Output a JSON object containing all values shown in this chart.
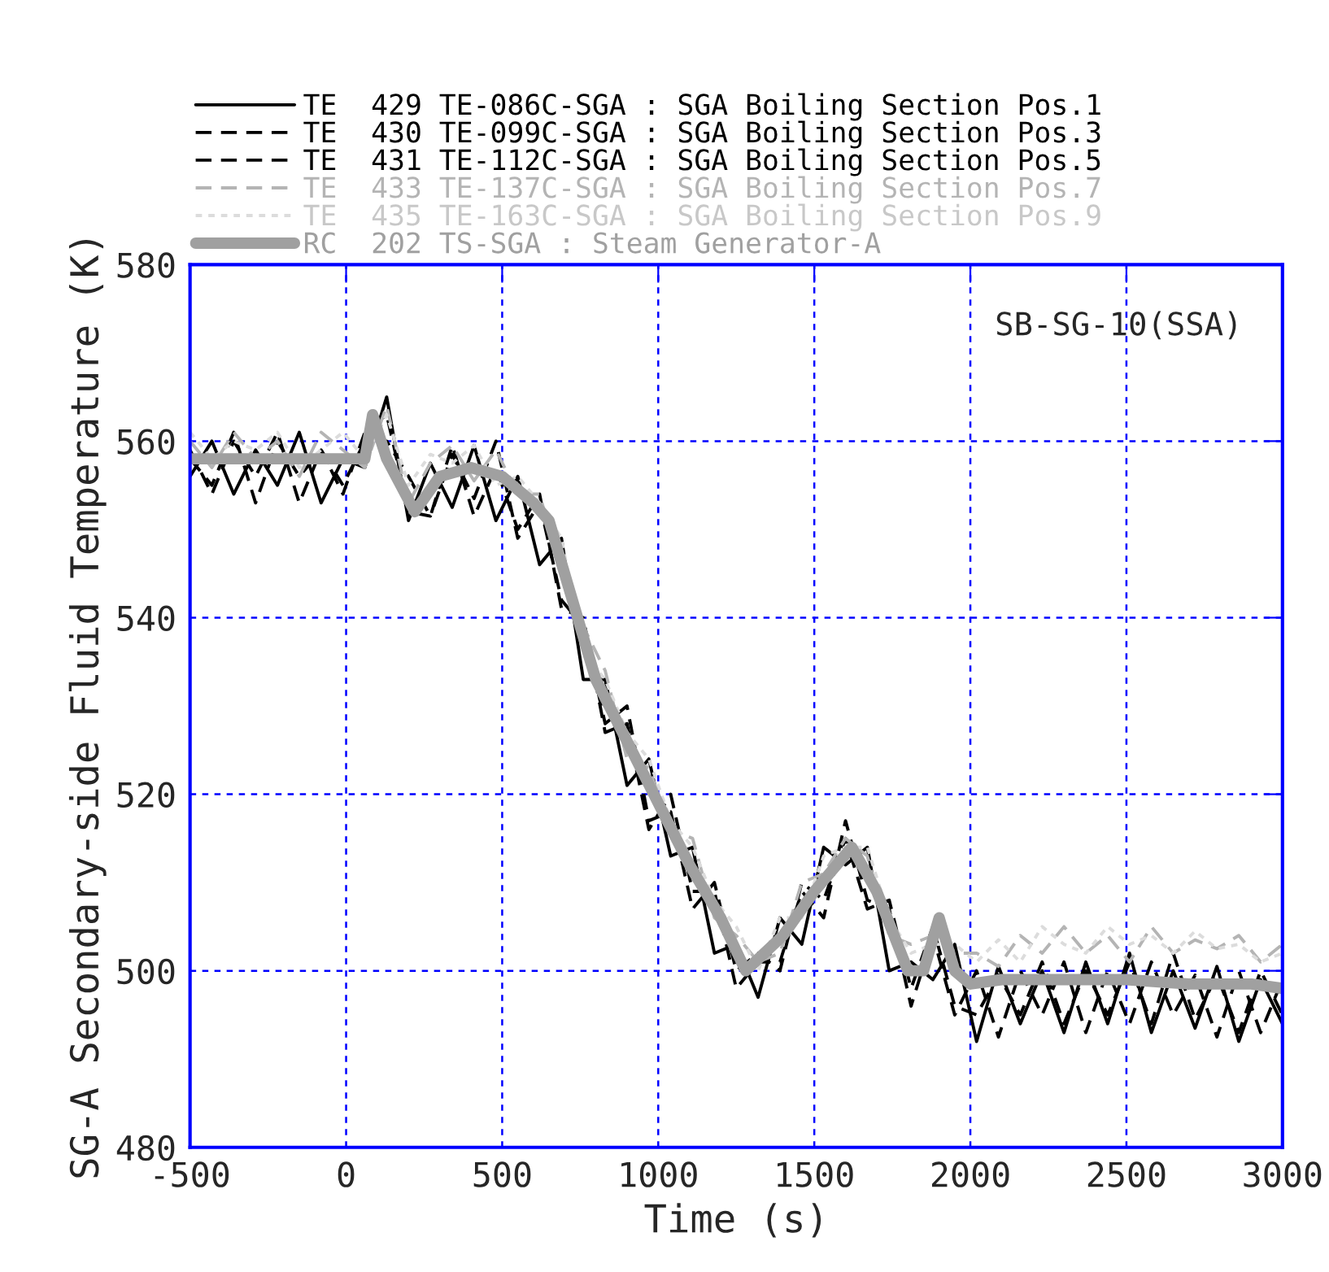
{
  "chart_data": {
    "type": "line",
    "xlabel": "Time (s)",
    "ylabel": "SG-A Secondary-side Fluid Temperature (K)",
    "annotations": [
      "SB-SG-10(SSA)"
    ],
    "xlim": [
      -500,
      3000
    ],
    "xticks": [
      -500,
      0,
      500,
      1000,
      1500,
      2000,
      2500,
      3000
    ],
    "ylim": [
      480,
      580
    ],
    "yticks": [
      480,
      500,
      520,
      540,
      560,
      580
    ],
    "grid": true,
    "legend": "top",
    "x": [
      -500,
      -430,
      -360,
      -290,
      -220,
      -150,
      -80,
      -10,
      60,
      130,
      200,
      270,
      340,
      410,
      480,
      550,
      620,
      690,
      760,
      830,
      900,
      970,
      1040,
      1110,
      1180,
      1250,
      1320,
      1390,
      1460,
      1530,
      1600,
      1670,
      1740,
      1810,
      1880,
      1950,
      2020,
      2090,
      2160,
      2230,
      2300,
      2370,
      2440,
      2510,
      2580,
      2650,
      2720,
      2790,
      2860,
      2930,
      3000
    ],
    "series": [
      {
        "name": "TE  429 TE-086C-SGA : SGA Boiling Section Pos.1",
        "color": "#000000",
        "line_style": "solid",
        "values": [
          556,
          560,
          554,
          559,
          555,
          561,
          553,
          558,
          557,
          565,
          551,
          557.5,
          552.5,
          559.5,
          551,
          556,
          546,
          549,
          533,
          533,
          521,
          524,
          513,
          514,
          502,
          503,
          497,
          506,
          503,
          514,
          512,
          514,
          500,
          501,
          499,
          503,
          492,
          500.5,
          494,
          500,
          493,
          501,
          494,
          502,
          493,
          500,
          493.5,
          500.5,
          492,
          499,
          494
        ]
      },
      {
        "name": "TE  430 TE-099C-SGA : SGA Boiling Section Pos.3",
        "color": "#000000",
        "line_style": "dashed",
        "values": [
          559,
          554,
          560,
          556,
          561,
          553,
          559,
          555,
          560,
          560,
          556,
          551.5,
          559.5,
          551.5,
          557,
          550,
          554,
          541,
          540,
          527,
          528,
          516,
          520,
          509,
          509,
          498,
          501,
          501,
          509,
          506,
          517,
          508,
          507,
          496,
          504,
          495,
          500,
          492.5,
          500,
          495,
          501,
          493,
          500,
          494,
          501,
          495,
          499.5,
          492.5,
          500,
          493,
          499
        ]
      },
      {
        "name": "TE  431 TE-112C-SGA : SGA Boiling Section Pos.5",
        "color": "#000000",
        "line_style": "dashed",
        "values": [
          558,
          555,
          561,
          553,
          560,
          556,
          559,
          554,
          561,
          563,
          552,
          551.5,
          558.5,
          553.5,
          560,
          549,
          553,
          542,
          539,
          528,
          530,
          517,
          518,
          507,
          510,
          500,
          502,
          500,
          510,
          508,
          515,
          507,
          508,
          498,
          505,
          496,
          495,
          499.5,
          495,
          501,
          494,
          500,
          495,
          501,
          494,
          502,
          494.5,
          499.5,
          493,
          500,
          495
        ]
      },
      {
        "name": "TE  433 TE-137C-SGA : SGA Boiling Section Pos.7",
        "color": "#b4b4b4",
        "line_style": "dashed",
        "values": [
          560,
          557,
          561,
          558,
          560,
          556,
          561,
          559,
          557,
          564,
          553,
          557.5,
          559.5,
          555.5,
          559,
          554,
          554,
          545,
          539,
          534,
          524,
          523,
          516,
          515,
          506,
          504,
          501,
          502,
          510,
          511,
          515,
          513,
          504,
          503,
          504,
          502,
          502,
          500.5,
          504,
          502,
          505,
          502,
          504,
          501,
          505,
          502,
          503.5,
          502.5,
          504,
          501,
          503
        ]
      },
      {
        "name": "TE  435 TE-163C-SGA : SGA Boiling Section Pos.9",
        "color": "#dcdcdc",
        "line_style": "dotted",
        "values": [
          561,
          558,
          560,
          559,
          561,
          557,
          559,
          561,
          558,
          563,
          555,
          558.5,
          557.5,
          559.5,
          555,
          556,
          553,
          549,
          536,
          533,
          527,
          524,
          517,
          514,
          508,
          505,
          500,
          506,
          506,
          513,
          514,
          514,
          506,
          502,
          503,
          503,
          501,
          503.5,
          501,
          505,
          503,
          502,
          505,
          503,
          504,
          502,
          504.5,
          502.5,
          503,
          501,
          502
        ]
      },
      {
        "name": "RC  202 TS-SGA : Steam Generator-A",
        "color": "#a0a0a0",
        "line_style": "solid",
        "x": [
          -500,
          0,
          60,
          85,
          130,
          220,
          300,
          400,
          500,
          600,
          650,
          700,
          800,
          900,
          1000,
          1100,
          1200,
          1280,
          1400,
          1500,
          1620,
          1700,
          1800,
          1850,
          1900,
          1950,
          2000,
          2100,
          2300,
          2500,
          2700,
          2900,
          3000
        ],
        "values": [
          558,
          558,
          558,
          563,
          558,
          552,
          556,
          557,
          556,
          553,
          551,
          545,
          533,
          526,
          519,
          512,
          506,
          500,
          504,
          509,
          514,
          509,
          500,
          500,
          506,
          500,
          498.5,
          499,
          499,
          499,
          498.5,
          498.5,
          498
        ]
      }
    ]
  }
}
